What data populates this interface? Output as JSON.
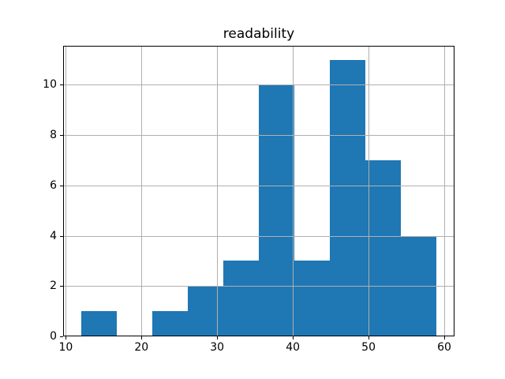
{
  "figure": {
    "background": "#ffffff"
  },
  "chart_data": {
    "type": "bar",
    "subtype": "histogram",
    "title": "readability",
    "xlabel": "",
    "ylabel": "",
    "bin_edges": [
      12.0,
      16.7,
      21.4,
      26.1,
      30.8,
      35.5,
      40.2,
      44.9,
      49.6,
      54.3,
      59.0
    ],
    "counts": [
      1,
      0,
      1,
      2,
      3,
      10,
      3,
      11,
      7,
      4
    ],
    "xticks": [
      10,
      20,
      30,
      40,
      50,
      60
    ],
    "yticks": [
      0,
      2,
      4,
      6,
      8,
      10
    ],
    "xlim": [
      9.65,
      61.35
    ],
    "ylim": [
      0,
      11.55
    ],
    "grid": true,
    "grid_over_bars": true,
    "legend": null,
    "colors": {
      "bar": "#1f77b4",
      "grid": "#b0b0b0",
      "axis": "#000000",
      "text": "#000000",
      "background": "#ffffff"
    }
  }
}
